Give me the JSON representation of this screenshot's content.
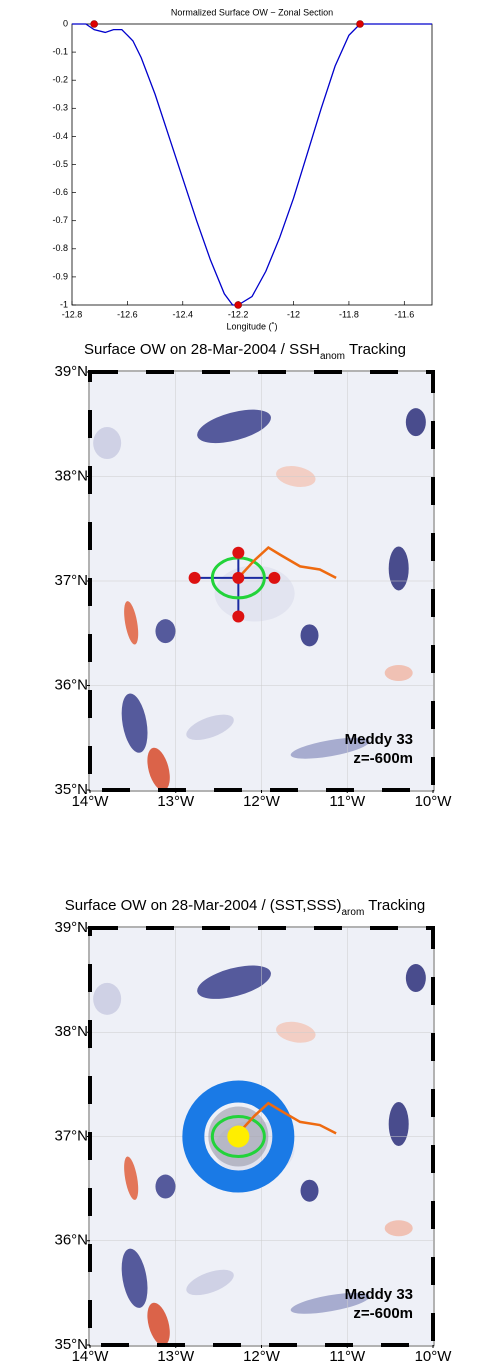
{
  "chart_data": [
    {
      "type": "line",
      "title": "Normalized Surface OW − Zonal Section",
      "x_label": "Longitude (˚)",
      "x": [
        -12.8,
        -12.75,
        -12.72,
        -12.68,
        -12.65,
        -12.62,
        -12.58,
        -12.55,
        -12.5,
        -12.45,
        -12.4,
        -12.35,
        -12.3,
        -12.25,
        -12.22,
        -12.2,
        -12.15,
        -12.1,
        -12.05,
        -12.0,
        -11.95,
        -11.9,
        -11.85,
        -11.8,
        -11.76,
        -11.7,
        -11.6,
        -11.5
      ],
      "series": [
        {
          "color": "#0000cc",
          "values": [
            0,
            0,
            -0.02,
            -0.03,
            -0.02,
            -0.02,
            -0.06,
            -0.12,
            -0.25,
            -0.4,
            -0.55,
            -0.7,
            -0.84,
            -0.96,
            -1,
            -1,
            -0.97,
            -0.88,
            -0.76,
            -0.62,
            -0.46,
            -0.3,
            -0.15,
            -0.04,
            0,
            0,
            0,
            0
          ]
        }
      ],
      "markers": {
        "x": [
          -12.72,
          -12.2,
          -11.76
        ],
        "y": [
          0,
          -1,
          0
        ],
        "color": "#dd0000"
      },
      "xlim": [
        -12.8,
        -11.5
      ],
      "xticks": [
        -12.8,
        -12.6,
        -12.4,
        -12.2,
        -12,
        -11.8,
        -11.6
      ],
      "ylim": [
        -1,
        0
      ],
      "yticks": [
        0,
        -0.1,
        -0.2,
        -0.3,
        -0.4,
        -0.5,
        -0.6,
        -0.7,
        -0.8,
        -0.9,
        -1
      ]
    },
    {
      "type": "map",
      "title": "Surface OW on 28-Mar-2004 / SSH",
      "title_subscript": "anom",
      "title_suffix": "Tracking",
      "annotations": [
        "Meddy 33",
        "z=-600m"
      ],
      "xlim": [
        -14,
        -10
      ],
      "ylim": [
        35,
        39
      ],
      "xticks": [
        {
          "value": -14,
          "label": "14°W"
        },
        {
          "value": -13,
          "label": "13°W"
        },
        {
          "value": -12,
          "label": "12°W"
        },
        {
          "value": -11,
          "label": "11°W"
        },
        {
          "value": -10,
          "label": "10°W"
        }
      ],
      "yticks": [
        {
          "value": 35,
          "label": "35°N"
        },
        {
          "value": 36,
          "label": "36°N"
        },
        {
          "value": 37,
          "label": "37°N"
        },
        {
          "value": 38,
          "label": "38°N"
        },
        {
          "value": 39,
          "label": "39°N"
        }
      ],
      "track": {
        "x": [
          -12.27,
          -12.08,
          -11.92,
          -11.78,
          -11.55,
          -11.32,
          -11.13
        ],
        "y": [
          37.03,
          37.2,
          37.32,
          37.25,
          37.14,
          37.11,
          37.03
        ],
        "color": "#ee6a10"
      },
      "points": {
        "x": [
          -12.27,
          -12.27,
          -12.27,
          -12.78,
          -11.85
        ],
        "y": [
          37.03,
          37.27,
          36.66,
          37.03,
          37.03
        ],
        "color": "#dd1111"
      }
    },
    {
      "type": "map",
      "title": "Surface OW on 28-Mar-2004 / (SST,SSS)",
      "title_subscript": "arom",
      "title_suffix": "Tracking",
      "annotations": [
        "Meddy 33",
        "z=-600m"
      ],
      "xlim": [
        -14,
        -10
      ],
      "ylim": [
        35,
        39
      ],
      "xticks": [
        {
          "value": -14,
          "label": "14°W"
        },
        {
          "value": -13,
          "label": "13°W"
        },
        {
          "value": -12,
          "label": "12°W"
        },
        {
          "value": -11,
          "label": "11°W"
        },
        {
          "value": -10,
          "label": "10°W"
        }
      ],
      "yticks": [
        {
          "value": 35,
          "label": "35°N"
        },
        {
          "value": 36,
          "label": "36°N"
        },
        {
          "value": 37,
          "label": "37°N"
        },
        {
          "value": 38,
          "label": "38°N"
        },
        {
          "value": 39,
          "label": "39°N"
        }
      ],
      "track": {
        "x": [
          -12.27,
          -12.08,
          -11.92,
          -11.78,
          -11.55,
          -11.32,
          -11.13
        ],
        "y": [
          37.03,
          37.2,
          37.32,
          37.25,
          37.14,
          37.11,
          37.03
        ],
        "color": "#ee6a10"
      },
      "points": {
        "x": [
          -12.27
        ],
        "y": [
          37.0
        ],
        "color": "#ffee00"
      }
    }
  ]
}
